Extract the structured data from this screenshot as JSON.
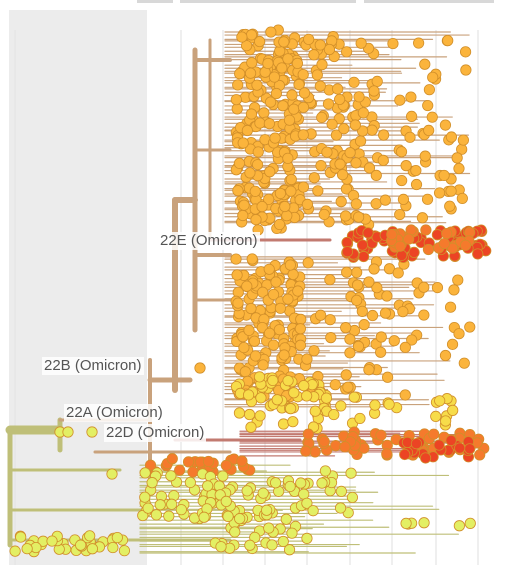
{
  "tree": {
    "clade_labels": [
      {
        "id": "22E",
        "text": "22E (Omicron)"
      },
      {
        "id": "22B",
        "text": "22B (Omicron)"
      },
      {
        "id": "22A",
        "text": "22A (Omicron)"
      },
      {
        "id": "22D",
        "text": "22D (Omicron)"
      }
    ],
    "colors": {
      "background": "#ffffff",
      "shaded_panel": "#ececec",
      "gridline": "#e4e4e4",
      "branch_root": "#bfbf78",
      "branch_mid": "#c9a27c",
      "branch_red": "#c27a70",
      "tip_yellow_green": "#e3ef64",
      "tip_yellow": "#f7dc4a",
      "tip_orange": "#fbb43c",
      "tip_deep_orange": "#f57a2c",
      "tip_red": "#ec4424",
      "tip_stroke": "#d18f2a"
    }
  }
}
